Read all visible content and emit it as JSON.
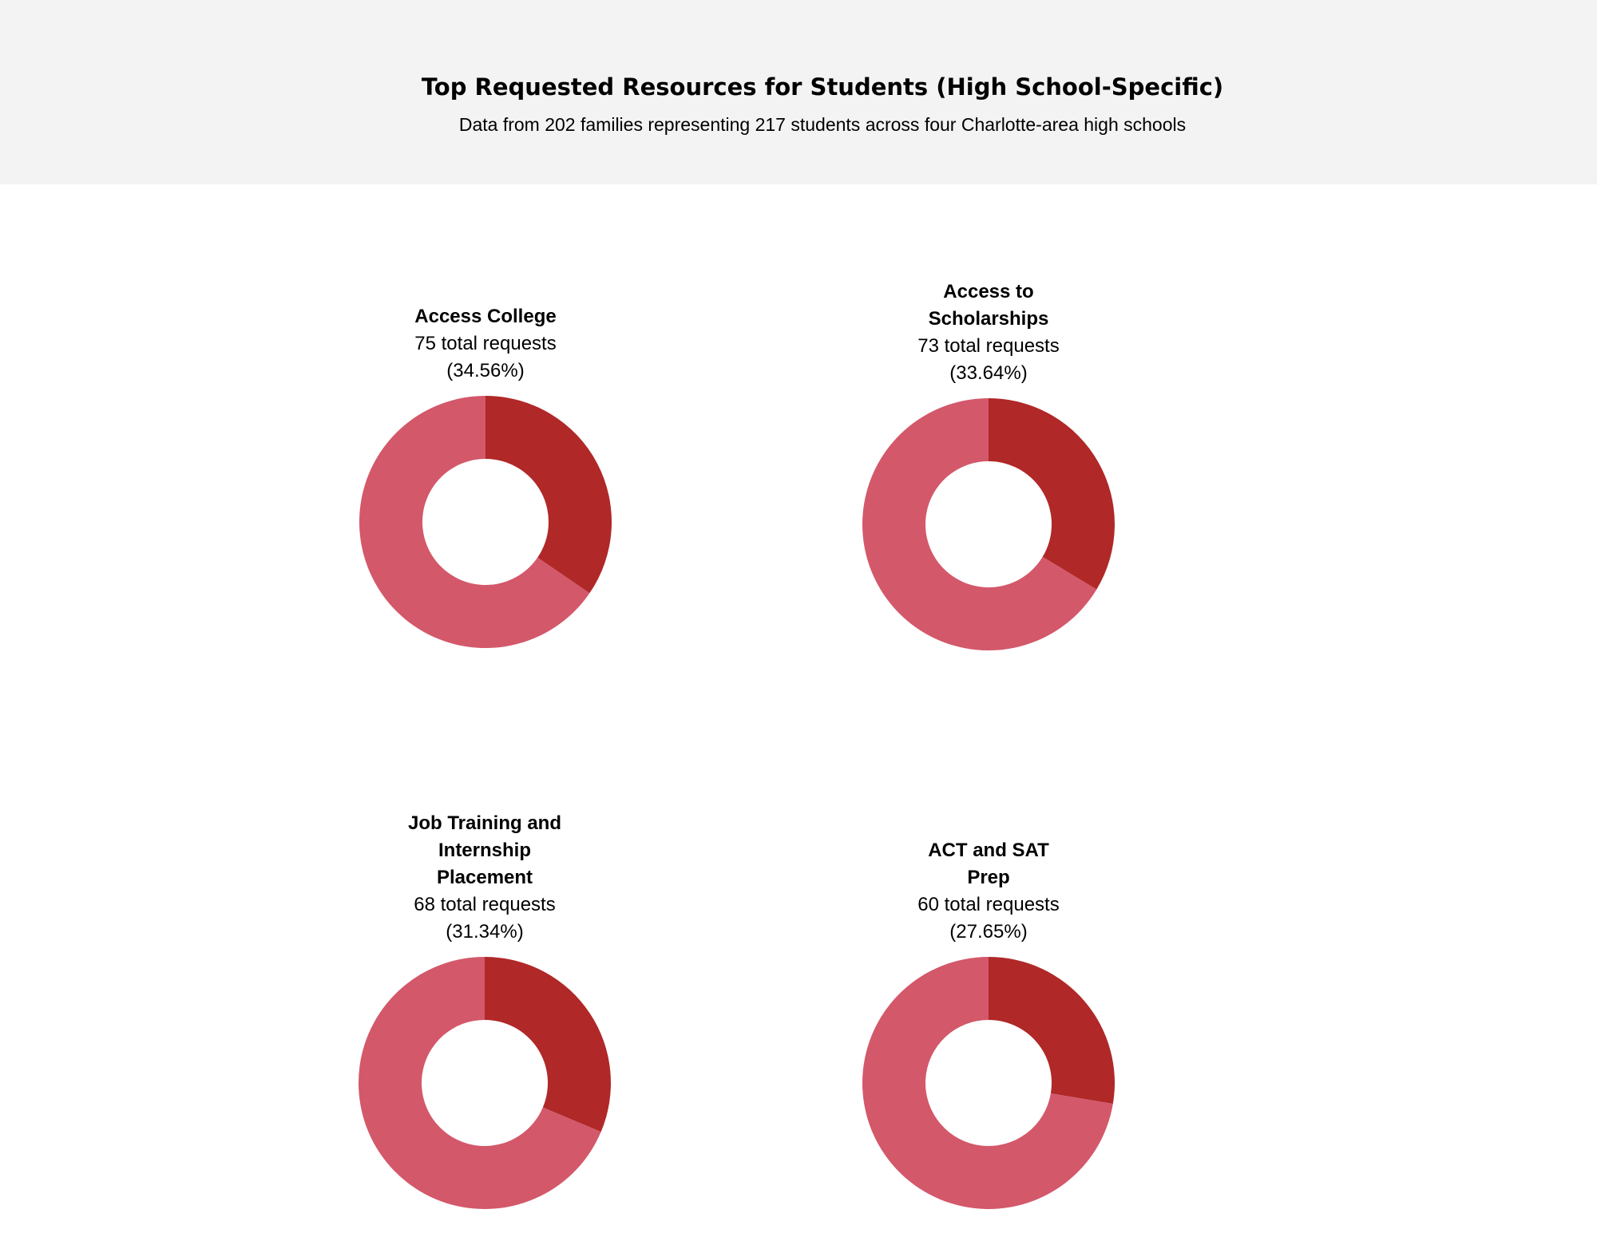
{
  "header": {
    "title": "Top Requested Resources for Students (High School-Specific)",
    "subtitle": "Data from 202 families representing 217 students across four Charlotte-area high schools"
  },
  "colors": {
    "header_bg": "#f3f3f3",
    "highlight": "#b02828",
    "remainder": "#d3586a"
  },
  "chart_data": [
    {
      "type": "pie",
      "title": "Access College",
      "requests_label": "75 total requests",
      "percent_label": "(34.56%)",
      "values": [
        34.56,
        65.44
      ]
    },
    {
      "type": "pie",
      "title": "Access to Scholarships",
      "requests_label": "73 total requests",
      "percent_label": "(33.64%)",
      "values": [
        33.64,
        66.36
      ]
    },
    {
      "type": "pie",
      "title": "Job Training and Internship Placement",
      "requests_label": "68 total requests",
      "percent_label": "(31.34%)",
      "values": [
        31.34,
        68.66
      ]
    },
    {
      "type": "pie",
      "title": "ACT and SAT Prep",
      "requests_label": "60 total requests",
      "percent_label": "(27.65%)",
      "values": [
        27.65,
        72.35
      ]
    }
  ]
}
